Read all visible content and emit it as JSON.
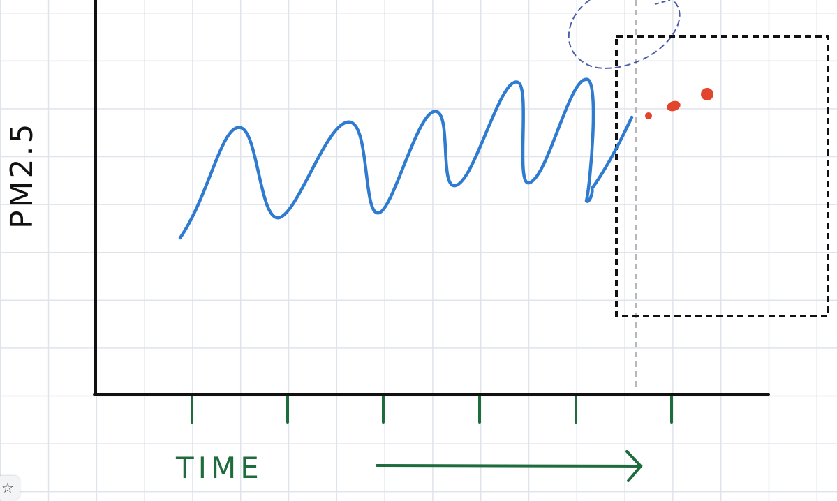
{
  "diagram": {
    "y_axis_label": "PM2.5",
    "x_axis_label": "TIME",
    "tick_count": 6,
    "colors": {
      "axis": "#111111",
      "signal": "#2f7bd0",
      "forecast": "#e2452c",
      "annotation": "#1e6b3c",
      "cursor": "#b8b8b8",
      "lasso": "#4b5ca8"
    }
  },
  "toolbar": {
    "star_icon": "star-icon"
  }
}
